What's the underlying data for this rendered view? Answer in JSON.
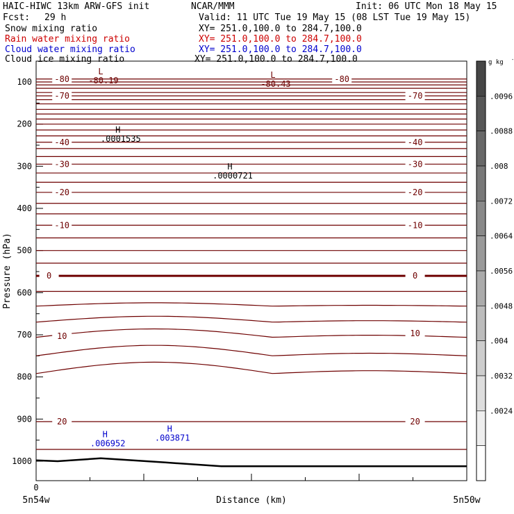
{
  "header": {
    "model": "HAIC-HIWC 13km ARW-GFS init",
    "org": "NCAR/MMM",
    "init": "Init: 06 UTC Mon 18 May 15",
    "fcst_label": "Fcst:",
    "fcst_value": "29 h",
    "valid": "Valid: 11 UTC Tue 19 May 15 (08 LST Tue 19 May 15)"
  },
  "colors": {
    "snow": "#000000",
    "rain": "#cc0000",
    "cloud_water": "#0000cc",
    "cloud_ice": "#000000",
    "temperature": "#6e0000"
  },
  "fields": [
    {
      "label": "Snow mixing ratio",
      "xy": "XY= 251.0,100.0 to 284.7,100.0",
      "color": "#000000"
    },
    {
      "label": "Rain water mixing ratio",
      "xy": "XY= 251.0,100.0 to 284.7,100.0",
      "color": "#cc0000"
    },
    {
      "label": "Cloud water mixing ratio",
      "xy": "XY= 251.0,100.0 to 284.7,100.0",
      "color": "#0000cc"
    },
    {
      "label": "Cloud ice mixing ratio",
      "xy": "XY= 251.0,100.0 to 284.7,100.0",
      "color": "#000000"
    }
  ],
  "chart_data": {
    "type": "line",
    "xlabel": "Distance (km)",
    "ylabel": "Pressure (hPa)",
    "x_tick_label": "0",
    "x_left_label": "5n54w",
    "x_right_label": "5n50w",
    "y_ticks": [
      "100",
      "200",
      "300",
      "400",
      "500",
      "600",
      "700",
      "800",
      "900",
      "1000"
    ],
    "ylim": [
      1050,
      85
    ],
    "colorbar": {
      "unit": "g kg",
      "unit_sup": "-1",
      "labels": [
        ".0096",
        ".0088",
        ".008",
        ".0072",
        ".0064",
        ".0056",
        ".0048",
        ".004",
        ".0032",
        ".0024"
      ]
    },
    "temperature_labels": [
      {
        "text": "-80",
        "x": 0.06,
        "p": 93
      },
      {
        "text": "-80",
        "x": 0.71,
        "p": 93
      },
      {
        "text": "-70",
        "x": 0.06,
        "p": 133
      },
      {
        "text": "-70",
        "x": 0.88,
        "p": 133
      },
      {
        "text": "-40",
        "x": 0.06,
        "p": 243
      },
      {
        "text": "-40",
        "x": 0.88,
        "p": 243
      },
      {
        "text": "-30",
        "x": 0.06,
        "p": 295
      },
      {
        "text": "-30",
        "x": 0.88,
        "p": 295
      },
      {
        "text": "-20",
        "x": 0.06,
        "p": 362
      },
      {
        "text": "-20",
        "x": 0.88,
        "p": 362
      },
      {
        "text": "-10",
        "x": 0.06,
        "p": 440
      },
      {
        "text": "-10",
        "x": 0.88,
        "p": 440
      },
      {
        "text": "0",
        "x": 0.03,
        "p": 560
      },
      {
        "text": "0",
        "x": 0.88,
        "p": 560
      },
      {
        "text": "10",
        "x": 0.06,
        "p": 703
      },
      {
        "text": "10",
        "x": 0.88,
        "p": 697
      },
      {
        "text": "20",
        "x": 0.06,
        "p": 906
      },
      {
        "text": "20",
        "x": 0.88,
        "p": 906
      }
    ],
    "extrema": [
      {
        "mark": "L",
        "value": "-80.19",
        "x": 0.15,
        "p": 87,
        "color": "#6e0000"
      },
      {
        "mark": "L",
        "value": "-80.43",
        "x": 0.55,
        "p": 95,
        "color": "#6e0000"
      },
      {
        "mark": "H",
        "value": ".0001535",
        "x": 0.19,
        "p": 225,
        "color": "#000000"
      },
      {
        "mark": "H",
        "value": ".0000721",
        "x": 0.45,
        "p": 313,
        "color": "#000000"
      },
      {
        "mark": "H",
        "value": ".006952",
        "x": 0.16,
        "p": 948,
        "color": "#0000cc"
      },
      {
        "mark": "H",
        "value": ".003871",
        "x": 0.31,
        "p": 935,
        "color": "#0000cc"
      }
    ]
  }
}
